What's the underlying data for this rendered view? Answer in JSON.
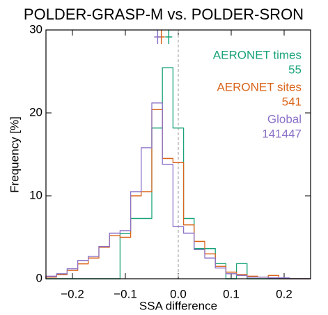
{
  "chart_data": {
    "type": "histogram",
    "title": "POLDER-GRASP-M vs. POLDER-SRON",
    "x_label": "SSA difference",
    "y_label": "Frequency [%]",
    "bins": [
      -0.25,
      -0.23,
      -0.21,
      -0.19,
      -0.17,
      -0.15,
      -0.13,
      -0.11,
      -0.09,
      -0.07,
      -0.05,
      -0.03,
      -0.01,
      0.01,
      0.03,
      0.05,
      0.07,
      0.09,
      0.11,
      0.13,
      0.15,
      0.17,
      0.19,
      0.21,
      0.23,
      0.25
    ],
    "xlim": [
      -0.25,
      0.25
    ],
    "ylim": [
      0,
      30
    ],
    "xticks": [
      {
        "value": -0.2,
        "label": "−0.2"
      },
      {
        "value": -0.1,
        "label": "−0.1"
      },
      {
        "value": 0,
        "label": "0.0"
      },
      0.1,
      0.2
    ],
    "yticks": [
      0,
      10,
      20,
      30
    ],
    "reference_line_x": 0,
    "series": [
      {
        "name": "AERONET times",
        "n": 55,
        "color": "#1aa37a",
        "marker_x": -0.018,
        "values": [
          0,
          0,
          0,
          0,
          0,
          0,
          0,
          5.45,
          7.27,
          7.27,
          18.18,
          25.45,
          18.18,
          7.27,
          3.64,
          3.64,
          1.82,
          0,
          1.82,
          0,
          0,
          0,
          0,
          0,
          0
        ]
      },
      {
        "name": "AERONET sites",
        "n": 541,
        "color": "#d9651a",
        "marker_x": -0.032,
        "values": [
          0.2,
          0.5,
          1.0,
          1.8,
          2.5,
          3.8,
          5.2,
          5.0,
          10.0,
          10.5,
          20.4,
          14.5,
          14.0,
          6.5,
          4.5,
          3.0,
          1.5,
          0.8,
          0.5,
          0.3,
          0.2,
          0.4,
          0,
          0,
          0
        ]
      },
      {
        "name": "Global",
        "n": 141447,
        "color": "#8c73c8",
        "marker_x": -0.039,
        "values": [
          0.3,
          0.6,
          1.2,
          2.2,
          2.7,
          3.9,
          5.5,
          5.8,
          10.5,
          15.8,
          21.2,
          13.8,
          6.3,
          5.5,
          3.5,
          2.5,
          1.3,
          0.6,
          0.4,
          0.2,
          0.2,
          0.1,
          0.1,
          0,
          0
        ]
      }
    ]
  }
}
